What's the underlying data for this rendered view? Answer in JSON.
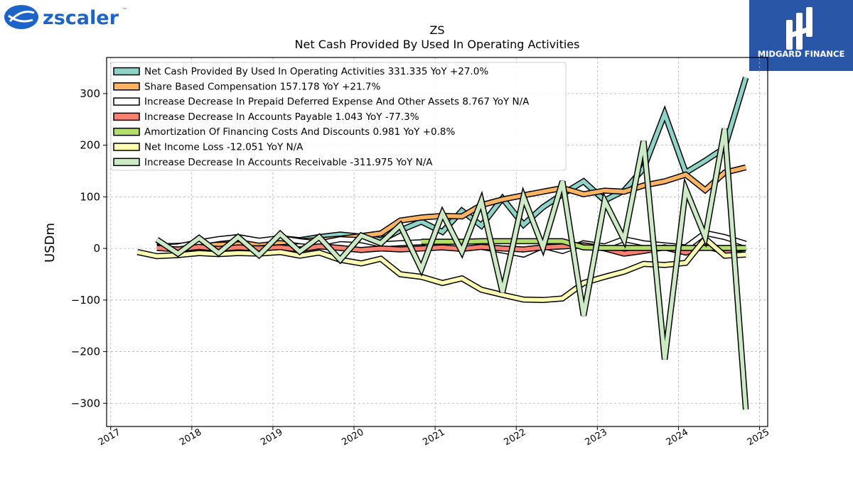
{
  "brand": {
    "left_logo_text": "zscaler",
    "left_logo_mark": "™",
    "right_logo_text": "MIDGARD FINANCE"
  },
  "chart_data": {
    "type": "line",
    "title": "ZS",
    "subtitle": "Net Cash Provided By Used In Operating Activities",
    "xlabel": "",
    "ylabel": "USDm",
    "xlim": [
      2016.95,
      2025.1
    ],
    "ylim": [
      -345,
      370
    ],
    "x_ticks": [
      "2017",
      "2018",
      "2019",
      "2020",
      "2021",
      "2022",
      "2023",
      "2024",
      "2025"
    ],
    "y_ticks": [
      -300,
      -200,
      -100,
      0,
      100,
      200,
      300
    ],
    "grid": true,
    "legend_position": "top-left",
    "series": [
      {
        "name": "Net Cash Provided By Used In Operating Activities",
        "legend": "Net Cash Provided By Used In Operating Activities  331.335 YoY +27.0%",
        "color": "#8dd3c7",
        "x": [
          2017.57,
          2017.83,
          2018.09,
          2018.33,
          2018.57,
          2018.83,
          2019.09,
          2019.33,
          2019.57,
          2019.83,
          2020.09,
          2020.33,
          2020.57,
          2020.83,
          2021.09,
          2021.33,
          2021.57,
          2021.83,
          2022.09,
          2022.33,
          2022.57,
          2022.83,
          2023.09,
          2023.33,
          2023.57,
          2023.83,
          2024.09,
          2024.33,
          2024.57,
          2024.83
        ],
        "y": [
          2,
          5,
          8,
          12,
          16,
          12,
          20,
          16,
          22,
          27,
          23,
          16,
          35,
          52,
          32,
          73,
          44,
          97,
          46,
          80,
          105,
          130,
          93,
          112,
          155,
          261,
          147,
          170,
          195,
          331
        ]
      },
      {
        "name": "Share Based Compensation",
        "legend": "Share Based Compensation  157.178 YoY +21.7%",
        "color": "#fdb462",
        "x": [
          2017.57,
          2017.83,
          2018.09,
          2018.33,
          2018.57,
          2018.83,
          2019.09,
          2019.33,
          2019.57,
          2019.83,
          2020.09,
          2020.33,
          2020.57,
          2020.83,
          2021.09,
          2021.33,
          2021.57,
          2021.83,
          2022.09,
          2022.33,
          2022.57,
          2022.83,
          2023.09,
          2023.33,
          2023.57,
          2023.83,
          2024.09,
          2024.33,
          2024.57,
          2024.83
        ],
        "y": [
          4,
          5,
          6,
          7,
          8,
          10,
          12,
          14,
          16,
          19,
          24,
          29,
          54,
          60,
          63,
          62,
          84,
          95,
          103,
          110,
          117,
          105,
          112,
          110,
          122,
          130,
          143,
          113,
          147,
          157
        ]
      },
      {
        "name": "Increase Decrease In Prepaid Deferred Expense And Other Assets",
        "legend": "Increase Decrease In Prepaid Deferred Expense And Other Assets  8.767 YoY N/A",
        "color": "#ffffff",
        "x": [
          2017.57,
          2017.83,
          2018.09,
          2018.33,
          2018.57,
          2018.83,
          2019.09,
          2019.33,
          2019.57,
          2019.83,
          2020.09,
          2020.33,
          2020.57,
          2020.83,
          2021.09,
          2021.33,
          2021.57,
          2021.83,
          2022.09,
          2022.33,
          2022.57,
          2022.83,
          2023.09,
          2023.33,
          2023.57,
          2023.83,
          2024.09,
          2024.33,
          2024.57,
          2024.83
        ],
        "y": [
          2,
          4,
          12,
          18,
          22,
          15,
          20,
          14,
          10,
          18,
          16,
          8,
          10,
          12,
          5,
          6,
          3,
          -4,
          -12,
          5,
          -5,
          10,
          4,
          18,
          10,
          6,
          2,
          30,
          22,
          9
        ]
      },
      {
        "name": "Increase Decrease In Accounts Payable",
        "legend": "Increase Decrease In Accounts Payable  1.043 YoY -77.3%",
        "color": "#fb8072",
        "x": [
          2017.57,
          2017.83,
          2018.09,
          2018.33,
          2018.57,
          2018.83,
          2019.09,
          2019.33,
          2019.57,
          2019.83,
          2020.09,
          2020.33,
          2020.57,
          2020.83,
          2021.09,
          2021.33,
          2021.57,
          2021.83,
          2022.09,
          2022.33,
          2022.57,
          2022.83,
          2023.09,
          2023.33,
          2023.57,
          2023.83,
          2024.09,
          2024.33,
          2024.57,
          2024.83
        ],
        "y": [
          1,
          -2,
          3,
          -1,
          2,
          0,
          2,
          -2,
          4,
          1,
          -3,
          0,
          -2,
          0,
          2,
          -1,
          3,
          0,
          -2,
          2,
          4,
          6,
          0,
          -10,
          -5,
          2,
          -8,
          5,
          -6,
          1
        ]
      },
      {
        "name": "Amortization Of Financing Costs And Discounts",
        "legend": "Amortization Of Financing Costs And Discounts  0.981 YoY +0.8%",
        "color": "#b3de69",
        "x": [
          2020.83,
          2021.09,
          2021.33,
          2021.57,
          2021.83,
          2022.09,
          2022.33,
          2022.57,
          2022.83,
          2023.09,
          2023.33,
          2023.57,
          2023.83,
          2024.09,
          2024.33,
          2024.57,
          2024.83
        ],
        "y": [
          13,
          13,
          13,
          14,
          14,
          14,
          14,
          14,
          2,
          1,
          1,
          1,
          1,
          1,
          1,
          1,
          1
        ]
      },
      {
        "name": "Net Income Loss",
        "legend": "Net Income Loss  -12.051 YoY N/A",
        "color": "#ffffb3",
        "x": [
          2017.33,
          2017.57,
          2017.83,
          2018.09,
          2018.33,
          2018.57,
          2018.83,
          2019.09,
          2019.33,
          2019.57,
          2019.83,
          2020.09,
          2020.33,
          2020.57,
          2020.83,
          2021.09,
          2021.33,
          2021.57,
          2021.83,
          2022.09,
          2022.33,
          2022.57,
          2022.83,
          2023.09,
          2023.33,
          2023.57,
          2023.83,
          2024.09,
          2024.33,
          2024.57,
          2024.83
        ],
        "y": [
          -7,
          -15,
          -13,
          -9,
          -11,
          -9,
          -10,
          -7,
          -14,
          -8,
          -22,
          -29,
          -20,
          -50,
          -55,
          -67,
          -58,
          -80,
          -90,
          -99,
          -100,
          -97,
          -67,
          -55,
          -45,
          -30,
          -32,
          -28,
          19,
          -14,
          -12
        ]
      },
      {
        "name": "Increase Decrease In Accounts Receivable",
        "legend": "Increase Decrease In Accounts Receivable  -311.975 YoY N/A",
        "color": "#ccebc5",
        "x": [
          2017.57,
          2017.83,
          2018.09,
          2018.33,
          2018.57,
          2018.83,
          2019.09,
          2019.33,
          2019.57,
          2019.83,
          2020.09,
          2020.33,
          2020.57,
          2020.83,
          2021.09,
          2021.33,
          2021.57,
          2021.83,
          2022.09,
          2022.33,
          2022.57,
          2022.83,
          2023.09,
          2023.33,
          2023.57,
          2023.83,
          2024.09,
          2024.33,
          2024.57,
          2024.83
        ],
        "y": [
          17,
          -10,
          20,
          -9,
          22,
          -13,
          28,
          -6,
          22,
          -22,
          25,
          10,
          45,
          -40,
          68,
          -6,
          92,
          -85,
          100,
          2,
          130,
          -130,
          92,
          17,
          208,
          -215,
          115,
          22,
          232,
          -312
        ]
      }
    ]
  }
}
